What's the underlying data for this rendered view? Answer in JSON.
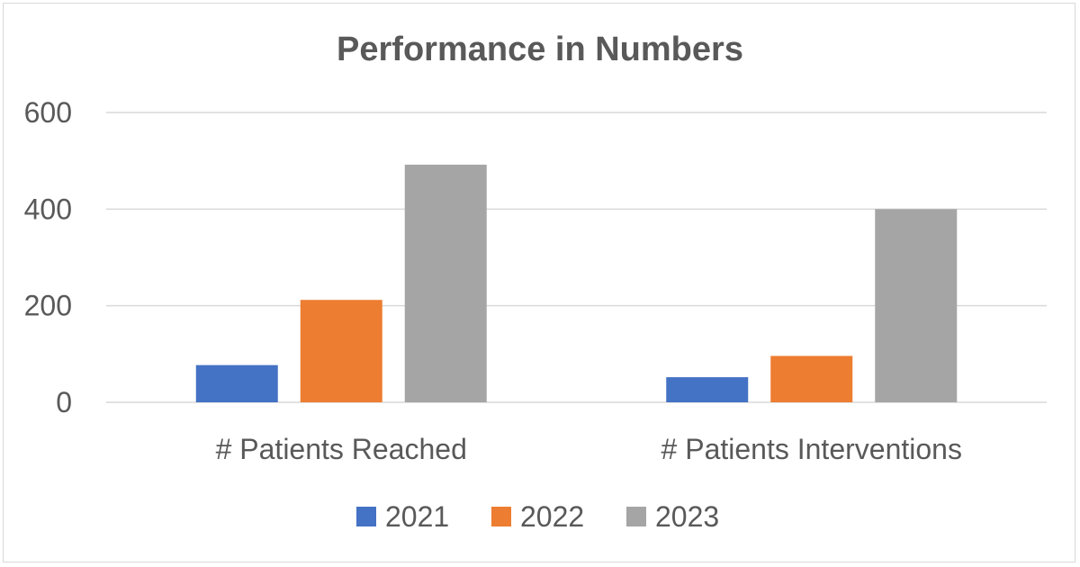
{
  "chart_data": {
    "type": "bar",
    "title": "Performance in Numbers",
    "categories": [
      "# Patients Reached",
      "# Patients Interventions"
    ],
    "series": [
      {
        "name": "2021",
        "values": [
          77,
          52
        ],
        "color": "#4472c4"
      },
      {
        "name": "2022",
        "values": [
          212,
          96
        ],
        "color": "#ed7d31"
      },
      {
        "name": "2023",
        "values": [
          492,
          400
        ],
        "color": "#a5a5a5"
      }
    ],
    "ylim": [
      0,
      600
    ],
    "yticks": [
      "0",
      "200",
      "400",
      "600"
    ],
    "grid": true,
    "legend": "bottom"
  }
}
